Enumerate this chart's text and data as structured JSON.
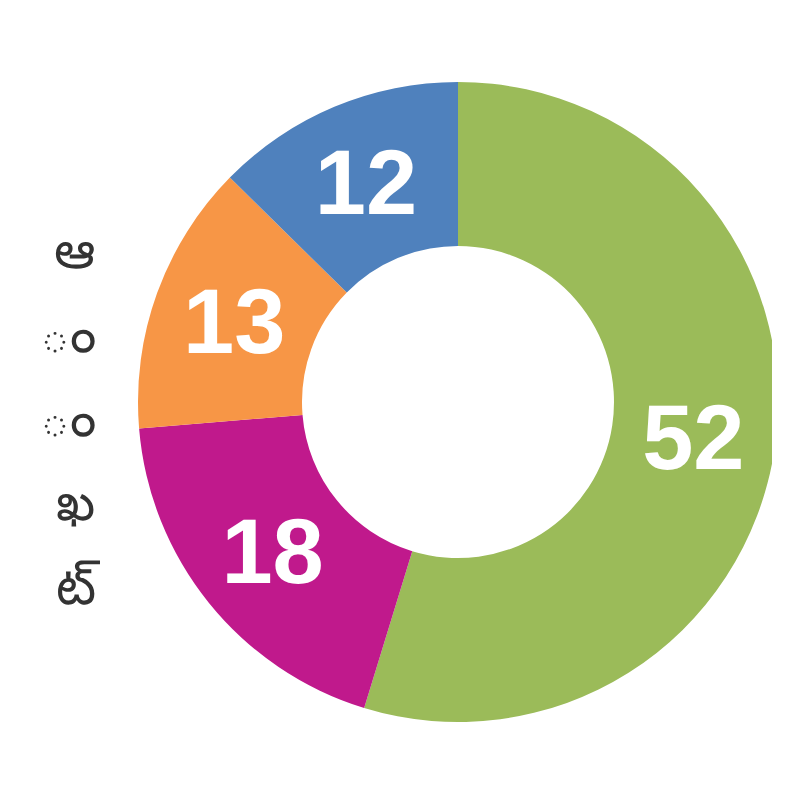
{
  "chart_data": {
    "type": "donut",
    "categories": [
      null,
      null,
      null,
      null
    ],
    "values": [
      52,
      18,
      13,
      12
    ],
    "colors": [
      "#9bbb59",
      "#c0198c",
      "#f79646",
      "#4f81bd"
    ],
    "data_labels": true,
    "annotations": [
      "ఆ",
      "ం",
      "ం",
      "ఖ",
      "ట్"
    ]
  }
}
